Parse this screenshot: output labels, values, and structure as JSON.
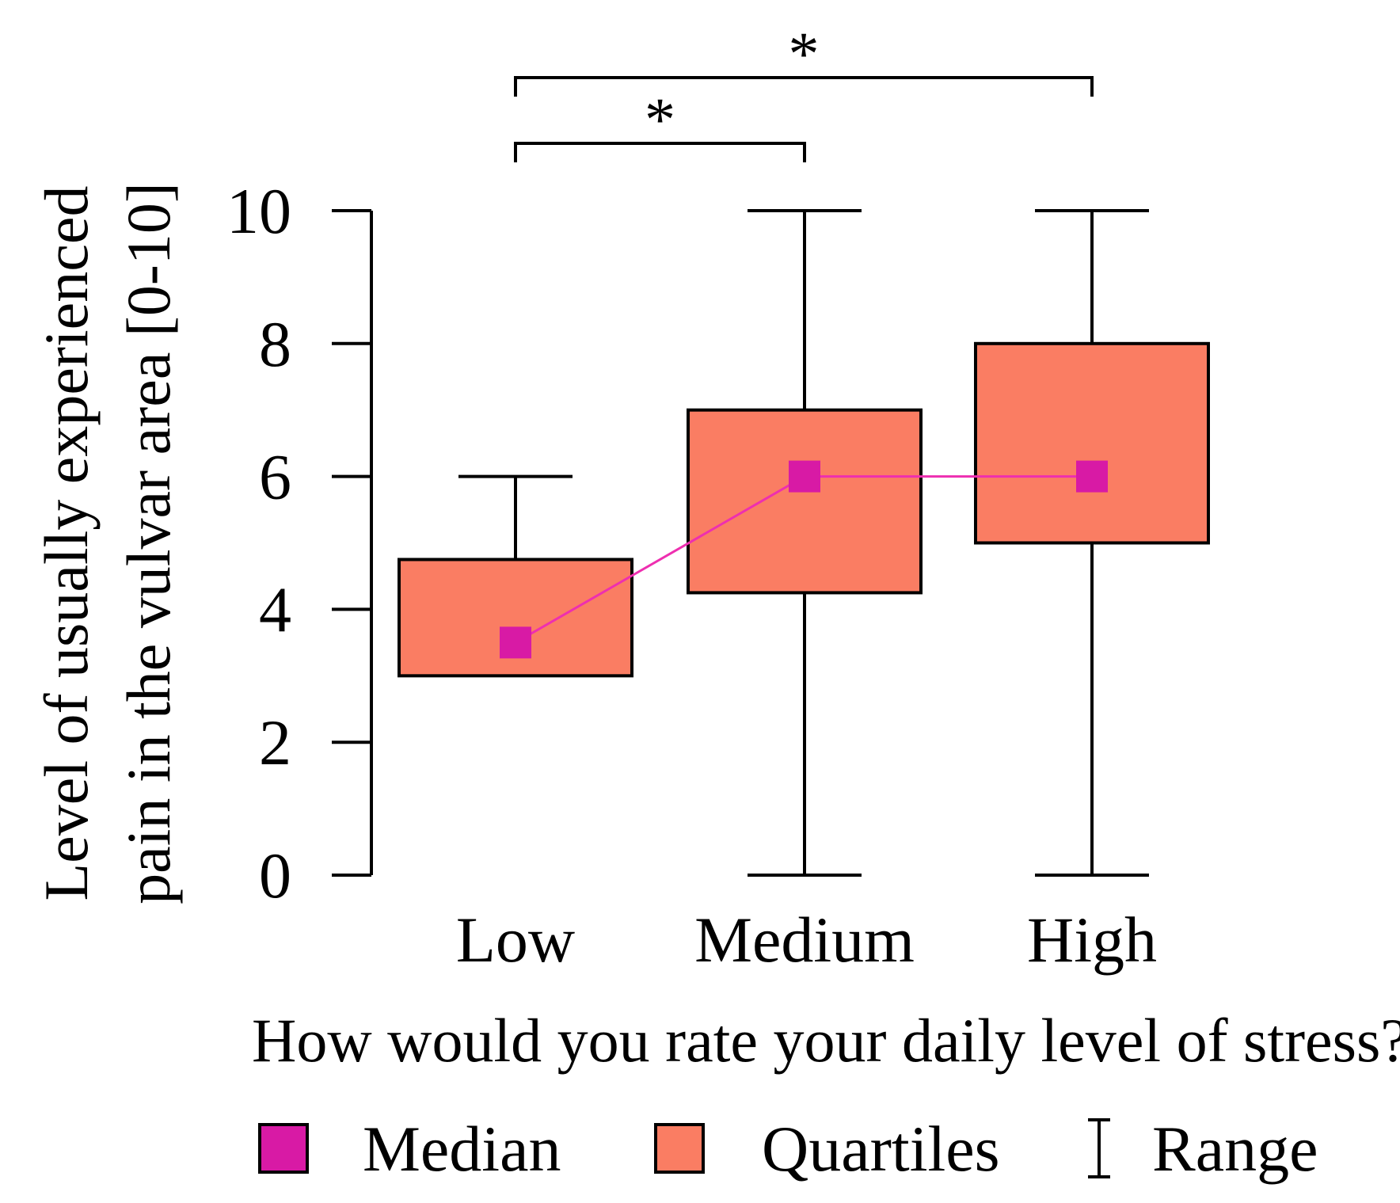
{
  "chart_data": {
    "type": "boxplot",
    "title": "",
    "xlabel": "How would you rate your daily level of stress?",
    "ylabel_lines": [
      "Level of usually experienced",
      "pain in the vulvar area [0-10]"
    ],
    "ylim": [
      0,
      10
    ],
    "yticks": [
      "0",
      "2",
      "4",
      "6",
      "8",
      "10"
    ],
    "categories": [
      "Low",
      "Medium",
      "High"
    ],
    "boxes": [
      {
        "category": "Low",
        "min": 3,
        "q1": 3,
        "median": 3.5,
        "q3": 4.75,
        "max": 6,
        "whisker_low": false
      },
      {
        "category": "Medium",
        "min": 0,
        "q1": 4.25,
        "median": 6,
        "q3": 7,
        "max": 10,
        "whisker_low": true
      },
      {
        "category": "High",
        "min": 0,
        "q1": 5,
        "median": 6,
        "q3": 8,
        "max": 10,
        "whisker_low": true
      }
    ],
    "significance": [
      {
        "from": "Low",
        "to": "Medium",
        "label": "*"
      },
      {
        "from": "Low",
        "to": "High",
        "label": "*"
      }
    ],
    "legend": [
      {
        "key": "median",
        "label": "Median"
      },
      {
        "key": "quartiles",
        "label": "Quartiles"
      },
      {
        "key": "range",
        "label": "Range"
      }
    ],
    "colors": {
      "box_fill": "#fa7d63",
      "median": "#d81aa5",
      "median_line": "#ee2fb0",
      "stroke": "#000000"
    }
  }
}
